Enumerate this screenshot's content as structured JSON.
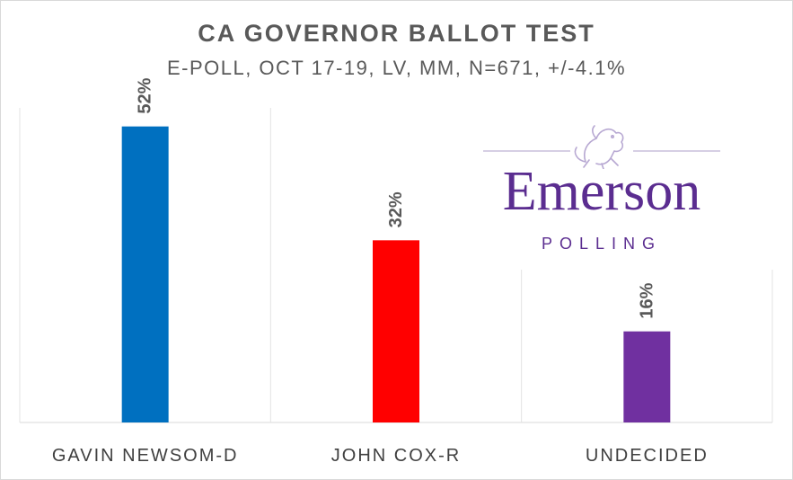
{
  "chart_data": {
    "type": "bar",
    "title": "CA GOVERNOR  BALLOT TEST",
    "subtitle": "E-POLL, OCT 17-19, LV, MM, N=671, +/-4.1%",
    "categories": [
      "GAVIN NEWSOM-D",
      "JOHN COX-R",
      "UNDECIDED"
    ],
    "values": [
      52,
      32,
      16
    ],
    "data_labels": [
      "52%",
      "32%",
      "16%"
    ],
    "colors": [
      "#0070c0",
      "#ff0000",
      "#7030a0"
    ],
    "ylim": [
      0,
      60
    ],
    "grid": false,
    "legend": "none"
  },
  "logo": {
    "name": "Emerson",
    "tagline": "POLLING",
    "color": "#5b2d90",
    "icon": "lion-crest-icon"
  }
}
